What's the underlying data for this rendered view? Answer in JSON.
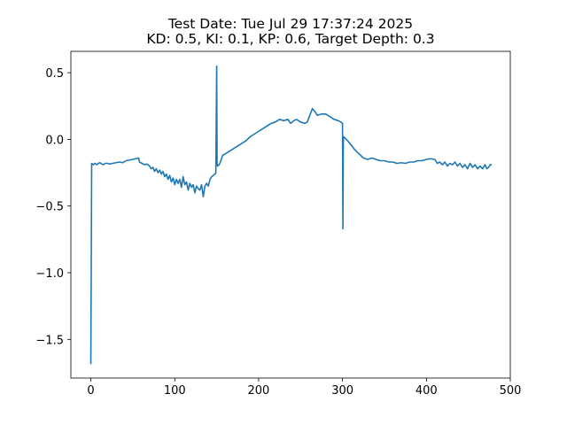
{
  "chart_data": {
    "type": "line",
    "title": "Test Date: Tue Jul 29 17:37:24 2025",
    "subtitle": "KD: 0.5, KI: 0.1, KP: 0.6, Target Depth: 0.3",
    "xlabel": "",
    "ylabel": "",
    "xlim": [
      -23.8,
      500
    ],
    "ylim": [
      -1.79,
      0.66
    ],
    "xticks": [
      0,
      100,
      200,
      300,
      400,
      500
    ],
    "xtick_labels": [
      "0",
      "100",
      "200",
      "300",
      "400",
      "500"
    ],
    "yticks": [
      0.5,
      0.0,
      -0.5,
      -1.0,
      -1.5
    ],
    "ytick_labels": [
      "0.5",
      "0.0",
      "−0.5",
      "−1.0",
      "−1.5"
    ],
    "grid": false,
    "legend": "none",
    "colors": {
      "line": "#1f77b4",
      "axes": "#000000",
      "background": "#ffffff"
    },
    "series": [
      {
        "points": [
          [
            0,
            -1.68
          ],
          [
            1,
            -0.18
          ],
          [
            3,
            -0.19
          ],
          [
            5,
            -0.18
          ],
          [
            7,
            -0.19
          ],
          [
            9,
            -0.18
          ],
          [
            11,
            -0.175
          ],
          [
            13,
            -0.185
          ],
          [
            15,
            -0.19
          ],
          [
            17,
            -0.18
          ],
          [
            20,
            -0.18
          ],
          [
            23,
            -0.185
          ],
          [
            26,
            -0.18
          ],
          [
            30,
            -0.175
          ],
          [
            34,
            -0.17
          ],
          [
            38,
            -0.175
          ],
          [
            42,
            -0.16
          ],
          [
            46,
            -0.155
          ],
          [
            50,
            -0.15
          ],
          [
            54,
            -0.145
          ],
          [
            57,
            -0.14
          ],
          [
            58,
            -0.17
          ],
          [
            61,
            -0.18
          ],
          [
            64,
            -0.19
          ],
          [
            66,
            -0.185
          ],
          [
            68,
            -0.19
          ],
          [
            70,
            -0.2
          ],
          [
            72,
            -0.22
          ],
          [
            74,
            -0.21
          ],
          [
            76,
            -0.24
          ],
          [
            78,
            -0.22
          ],
          [
            80,
            -0.25
          ],
          [
            82,
            -0.23
          ],
          [
            84,
            -0.26
          ],
          [
            86,
            -0.24
          ],
          [
            88,
            -0.28
          ],
          [
            90,
            -0.26
          ],
          [
            92,
            -0.3
          ],
          [
            94,
            -0.27
          ],
          [
            96,
            -0.32
          ],
          [
            98,
            -0.29
          ],
          [
            100,
            -0.34
          ],
          [
            102,
            -0.3
          ],
          [
            104,
            -0.33
          ],
          [
            106,
            -0.3
          ],
          [
            108,
            -0.36
          ],
          [
            110,
            -0.28
          ],
          [
            112,
            -0.34
          ],
          [
            114,
            -0.32
          ],
          [
            116,
            -0.38
          ],
          [
            118,
            -0.33
          ],
          [
            120,
            -0.36
          ],
          [
            122,
            -0.34
          ],
          [
            124,
            -0.4
          ],
          [
            126,
            -0.35
          ],
          [
            128,
            -0.37
          ],
          [
            130,
            -0.38
          ],
          [
            132,
            -0.34
          ],
          [
            134,
            -0.43
          ],
          [
            136,
            -0.35
          ],
          [
            138,
            -0.33
          ],
          [
            140,
            -0.35
          ],
          [
            142,
            -0.3
          ],
          [
            144,
            -0.28
          ],
          [
            146,
            -0.27
          ],
          [
            148,
            -0.26
          ],
          [
            149,
            -0.25
          ],
          [
            150,
            0.55
          ],
          [
            150.5,
            -0.18
          ],
          [
            151,
            -0.2
          ],
          [
            153,
            -0.19
          ],
          [
            155,
            -0.16
          ],
          [
            157,
            -0.12
          ],
          [
            160,
            -0.11
          ],
          [
            165,
            -0.09
          ],
          [
            170,
            -0.07
          ],
          [
            175,
            -0.05
          ],
          [
            180,
            -0.03
          ],
          [
            185,
            -0.01
          ],
          [
            190,
            0.02
          ],
          [
            195,
            0.04
          ],
          [
            200,
            0.06
          ],
          [
            205,
            0.08
          ],
          [
            210,
            0.1
          ],
          [
            215,
            0.12
          ],
          [
            220,
            0.13
          ],
          [
            225,
            0.15
          ],
          [
            230,
            0.14
          ],
          [
            235,
            0.15
          ],
          [
            238,
            0.12
          ],
          [
            242,
            0.14
          ],
          [
            245,
            0.15
          ],
          [
            250,
            0.13
          ],
          [
            255,
            0.12
          ],
          [
            258,
            0.13
          ],
          [
            261,
            0.18
          ],
          [
            264,
            0.23
          ],
          [
            267,
            0.21
          ],
          [
            270,
            0.18
          ],
          [
            275,
            0.19
          ],
          [
            280,
            0.19
          ],
          [
            285,
            0.17
          ],
          [
            290,
            0.15
          ],
          [
            295,
            0.14
          ],
          [
            298,
            0.13
          ],
          [
            300,
            0.12
          ],
          [
            300.5,
            -0.67
          ],
          [
            301,
            0.02
          ],
          [
            303,
            0.01
          ],
          [
            306,
            -0.01
          ],
          [
            310,
            -0.04
          ],
          [
            315,
            -0.08
          ],
          [
            320,
            -0.11
          ],
          [
            325,
            -0.14
          ],
          [
            330,
            -0.15
          ],
          [
            335,
            -0.14
          ],
          [
            340,
            -0.15
          ],
          [
            345,
            -0.16
          ],
          [
            350,
            -0.16
          ],
          [
            355,
            -0.17
          ],
          [
            360,
            -0.17
          ],
          [
            365,
            -0.18
          ],
          [
            370,
            -0.175
          ],
          [
            375,
            -0.18
          ],
          [
            380,
            -0.17
          ],
          [
            385,
            -0.17
          ],
          [
            390,
            -0.16
          ],
          [
            395,
            -0.16
          ],
          [
            400,
            -0.15
          ],
          [
            405,
            -0.145
          ],
          [
            410,
            -0.15
          ],
          [
            413,
            -0.18
          ],
          [
            416,
            -0.17
          ],
          [
            419,
            -0.19
          ],
          [
            422,
            -0.17
          ],
          [
            425,
            -0.2
          ],
          [
            428,
            -0.18
          ],
          [
            431,
            -0.19
          ],
          [
            434,
            -0.17
          ],
          [
            437,
            -0.2
          ],
          [
            440,
            -0.18
          ],
          [
            443,
            -0.21
          ],
          [
            446,
            -0.19
          ],
          [
            449,
            -0.22
          ],
          [
            452,
            -0.18
          ],
          [
            455,
            -0.21
          ],
          [
            458,
            -0.19
          ],
          [
            461,
            -0.22
          ],
          [
            464,
            -0.2
          ],
          [
            467,
            -0.22
          ],
          [
            470,
            -0.19
          ],
          [
            472,
            -0.22
          ],
          [
            474,
            -0.21
          ],
          [
            476,
            -0.19
          ],
          [
            477,
            -0.19
          ]
        ]
      }
    ]
  }
}
